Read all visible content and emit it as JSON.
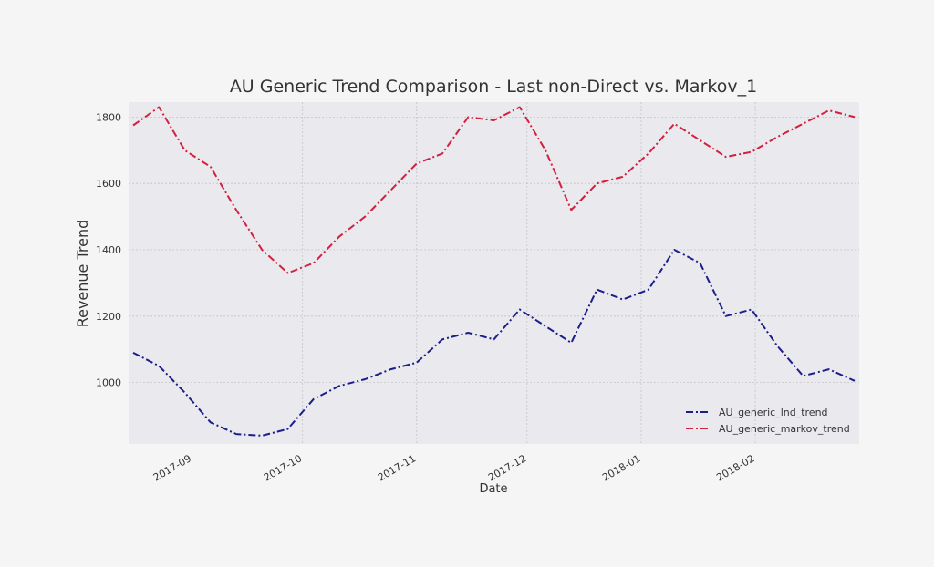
{
  "chart_data": {
    "type": "line",
    "title": "AU Generic Trend Comparison - Last non-Direct vs. Markov_1",
    "x_label": "Date",
    "y_label": "Revenue Trend",
    "x": [
      "2017-08-16",
      "2017-08-23",
      "2017-08-30",
      "2017-09-06",
      "2017-09-13",
      "2017-09-20",
      "2017-09-27",
      "2017-10-04",
      "2017-10-11",
      "2017-10-18",
      "2017-10-25",
      "2017-11-01",
      "2017-11-08",
      "2017-11-15",
      "2017-11-22",
      "2017-11-29",
      "2017-12-06",
      "2017-12-13",
      "2017-12-20",
      "2017-12-27",
      "2018-01-03",
      "2018-01-10",
      "2018-01-17",
      "2018-01-24",
      "2018-01-31",
      "2018-02-07",
      "2018-02-14",
      "2018-02-21",
      "2018-02-28"
    ],
    "series": [
      {
        "name": "AU_generic_lnd_trend",
        "color": "#1b1f8a",
        "values": [
          1090,
          1050,
          970,
          880,
          845,
          840,
          860,
          950,
          990,
          1010,
          1040,
          1060,
          1130,
          1150,
          1130,
          1220,
          1170,
          1120,
          1280,
          1250,
          1280,
          1400,
          1360,
          1200,
          1220,
          1110,
          1020,
          1040,
          1005
        ]
      },
      {
        "name": "AU_generic_markov_trend",
        "color": "#d2203f",
        "values": [
          1775,
          1830,
          1700,
          1650,
          1520,
          1400,
          1330,
          1360,
          1440,
          1500,
          1580,
          1660,
          1690,
          1800,
          1790,
          1830,
          1700,
          1520,
          1600,
          1620,
          1690,
          1780,
          1730,
          1680,
          1695,
          1740,
          1780,
          1820,
          1800
        ]
      }
    ],
    "xlim": [
      "2017-08-16",
      "2018-02-28"
    ],
    "xticks": [
      {
        "value": "2017-09-01",
        "label": "2017-09"
      },
      {
        "value": "2017-10-01",
        "label": "2017-10"
      },
      {
        "value": "2017-11-01",
        "label": "2017-11"
      },
      {
        "value": "2017-12-01",
        "label": "2017-12"
      },
      {
        "value": "2018-01-01",
        "label": "2018-01"
      },
      {
        "value": "2018-02-01",
        "label": "2018-02"
      }
    ],
    "ylim": [
      815,
      1845
    ],
    "yticks": [
      1000,
      1200,
      1400,
      1600,
      1800
    ],
    "grid": true,
    "legend": "lower right"
  }
}
